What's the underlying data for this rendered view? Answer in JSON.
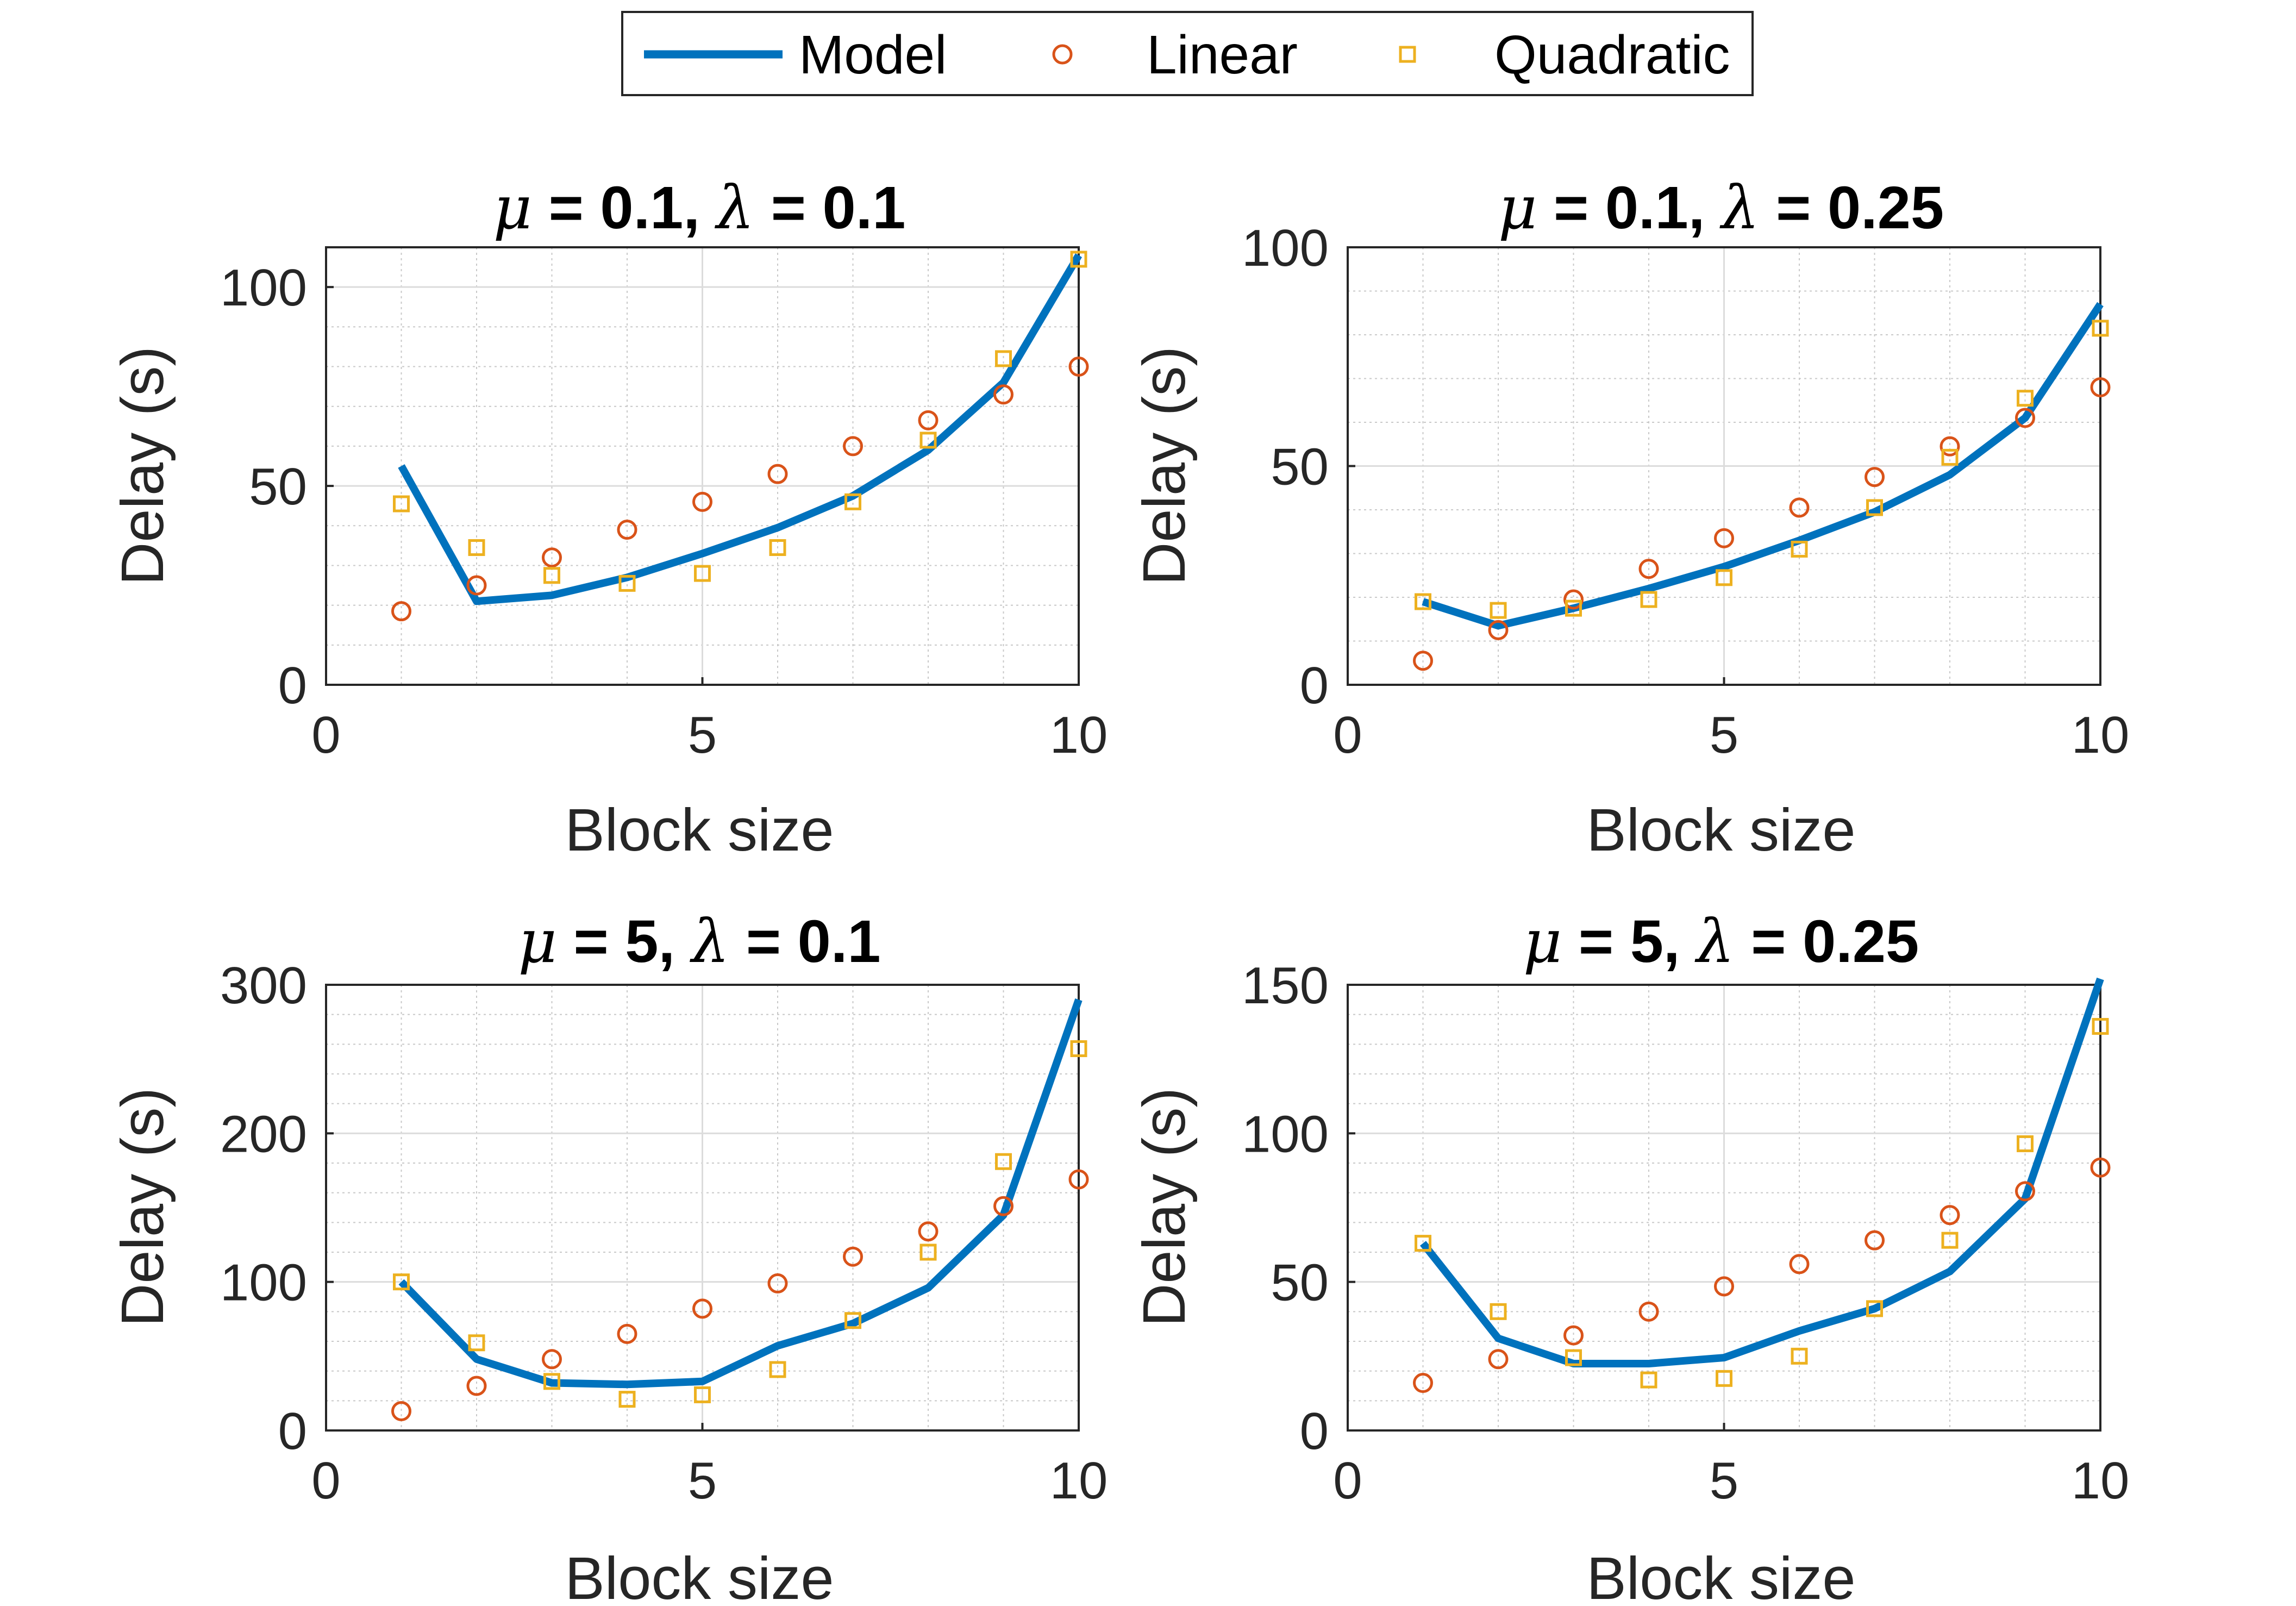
{
  "legend": {
    "placement": "top-center",
    "items": [
      {
        "label": "Model",
        "marker": "line",
        "color": "#0072BD"
      },
      {
        "label": "Linear",
        "marker": "circle",
        "color": "#D95319"
      },
      {
        "label": "Quadratic",
        "marker": "square",
        "color": "#EDB120"
      }
    ]
  },
  "chart_data": [
    {
      "type": "line",
      "title": {
        "mu": "0.1",
        "lambda": "0.1"
      },
      "xlabel": "Block size",
      "ylabel": "Delay (s)",
      "xlim": [
        0,
        10
      ],
      "ylim": [
        0,
        110
      ],
      "xticks": [
        0,
        5,
        10
      ],
      "yticks": [
        0,
        50,
        100
      ],
      "yminor": 10,
      "grid": true,
      "x": [
        1,
        2,
        3,
        4,
        5,
        6,
        7,
        8,
        9,
        10
      ],
      "series": [
        {
          "name": "Model",
          "style": "line",
          "values": [
            55,
            21,
            22.5,
            27,
            33,
            39.5,
            47.5,
            59,
            76,
            108
          ]
        },
        {
          "name": "Linear",
          "style": "circle",
          "values": [
            18.5,
            25,
            32,
            39,
            46,
            53,
            60,
            66.5,
            73,
            80
          ]
        },
        {
          "name": "Quadratic",
          "style": "square",
          "values": [
            45.5,
            34.5,
            27.5,
            25.5,
            28,
            34.5,
            46,
            61.5,
            82,
            107
          ]
        }
      ]
    },
    {
      "type": "line",
      "title": {
        "mu": "0.1",
        "lambda": "0.25"
      },
      "xlabel": "Block size",
      "ylabel": "Delay (s)",
      "xlim": [
        0,
        10
      ],
      "ylim": [
        0,
        100
      ],
      "xticks": [
        0,
        5,
        10
      ],
      "yticks": [
        0,
        50,
        100
      ],
      "yminor": 10,
      "grid": true,
      "x": [
        1,
        2,
        3,
        4,
        5,
        6,
        7,
        8,
        9,
        10
      ],
      "series": [
        {
          "name": "Model",
          "style": "line",
          "values": [
            19,
            13.5,
            17.5,
            22,
            27,
            33,
            39.5,
            48,
            61,
            87
          ]
        },
        {
          "name": "Linear",
          "style": "circle",
          "values": [
            5.5,
            12.5,
            19.5,
            26.5,
            33.5,
            40.5,
            47.5,
            54.5,
            61,
            68
          ]
        },
        {
          "name": "Quadratic",
          "style": "square",
          "values": [
            19,
            17,
            17.5,
            19.5,
            24.5,
            31,
            40.5,
            52,
            65.5,
            81.5
          ]
        }
      ]
    },
    {
      "type": "line",
      "title": {
        "mu": "5",
        "lambda": "0.1"
      },
      "xlabel": "Block size",
      "ylabel": "Delay (s)",
      "xlim": [
        0,
        10
      ],
      "ylim": [
        0,
        300
      ],
      "xticks": [
        0,
        5,
        10
      ],
      "yticks": [
        0,
        100,
        200,
        300
      ],
      "yminor": 20,
      "grid": true,
      "x": [
        1,
        2,
        3,
        4,
        5,
        6,
        7,
        8,
        9,
        10
      ],
      "series": [
        {
          "name": "Model",
          "style": "line",
          "values": [
            100,
            48,
            32,
            31,
            33,
            57,
            72,
            96,
            145,
            290
          ]
        },
        {
          "name": "Linear",
          "style": "circle",
          "values": [
            13,
            30,
            48,
            65,
            82,
            99,
            117,
            134,
            151,
            169
          ]
        },
        {
          "name": "Quadratic",
          "style": "square",
          "values": [
            100,
            59,
            33,
            21,
            24,
            41,
            74,
            120,
            181,
            257
          ]
        }
      ]
    },
    {
      "type": "line",
      "title": {
        "mu": "5",
        "lambda": "0.25"
      },
      "xlabel": "Block size",
      "ylabel": "Delay (s)",
      "xlim": [
        0,
        10
      ],
      "ylim": [
        0,
        150
      ],
      "xticks": [
        0,
        5,
        10
      ],
      "yticks": [
        0,
        50,
        100,
        150
      ],
      "yminor": 10,
      "grid": true,
      "x": [
        1,
        2,
        3,
        4,
        5,
        6,
        7,
        8,
        9,
        10
      ],
      "series": [
        {
          "name": "Model",
          "style": "line",
          "values": [
            63,
            31,
            22.5,
            22.5,
            24.5,
            33.5,
            41,
            53.5,
            78,
            152
          ]
        },
        {
          "name": "Linear",
          "style": "circle",
          "values": [
            16,
            24,
            32,
            40,
            48.5,
            56,
            64,
            72.5,
            80.5,
            88.5
          ]
        },
        {
          "name": "Quadratic",
          "style": "square",
          "values": [
            63,
            40,
            24.5,
            17,
            17.5,
            25,
            41,
            64,
            96.5,
            136
          ]
        }
      ]
    }
  ]
}
